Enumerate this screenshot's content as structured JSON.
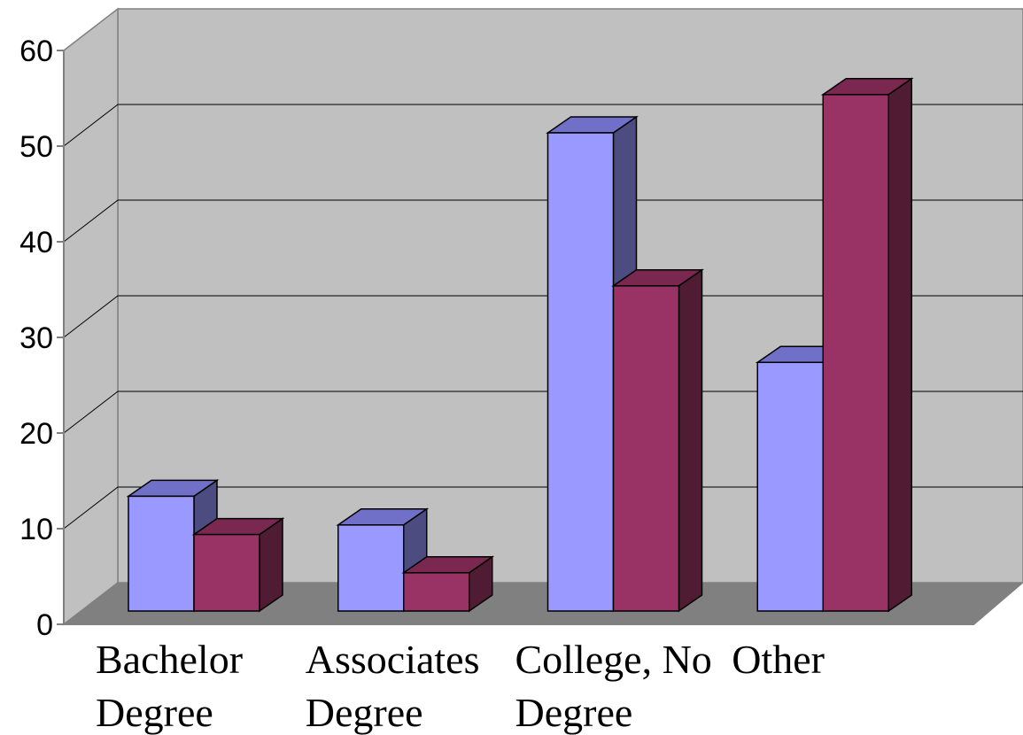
{
  "chart_data": {
    "type": "bar",
    "three_d": true,
    "categories": [
      [
        "Bachelor",
        "Degree"
      ],
      [
        "Associates",
        "Degree"
      ],
      [
        "College, No",
        "Degree"
      ],
      [
        "Other"
      ]
    ],
    "series": [
      {
        "values": [
          12,
          9,
          50,
          26
        ],
        "color": "#9999ff",
        "top_color": "#7070c8",
        "side_color": "#4c4c80"
      },
      {
        "values": [
          8,
          4,
          34,
          54
        ],
        "color": "#993366",
        "top_color": "#7a2850",
        "side_color": "#501c34"
      }
    ],
    "title": "",
    "xlabel": "",
    "ylabel": "",
    "ylim": [
      0,
      60
    ],
    "yticks": [
      0,
      10,
      20,
      30,
      40,
      50,
      60
    ],
    "grid": true,
    "legend": "none",
    "colors": {
      "wall": "#c0c0c0",
      "floor": "#808080",
      "gridline": "#000000",
      "axis": "#808080"
    }
  }
}
